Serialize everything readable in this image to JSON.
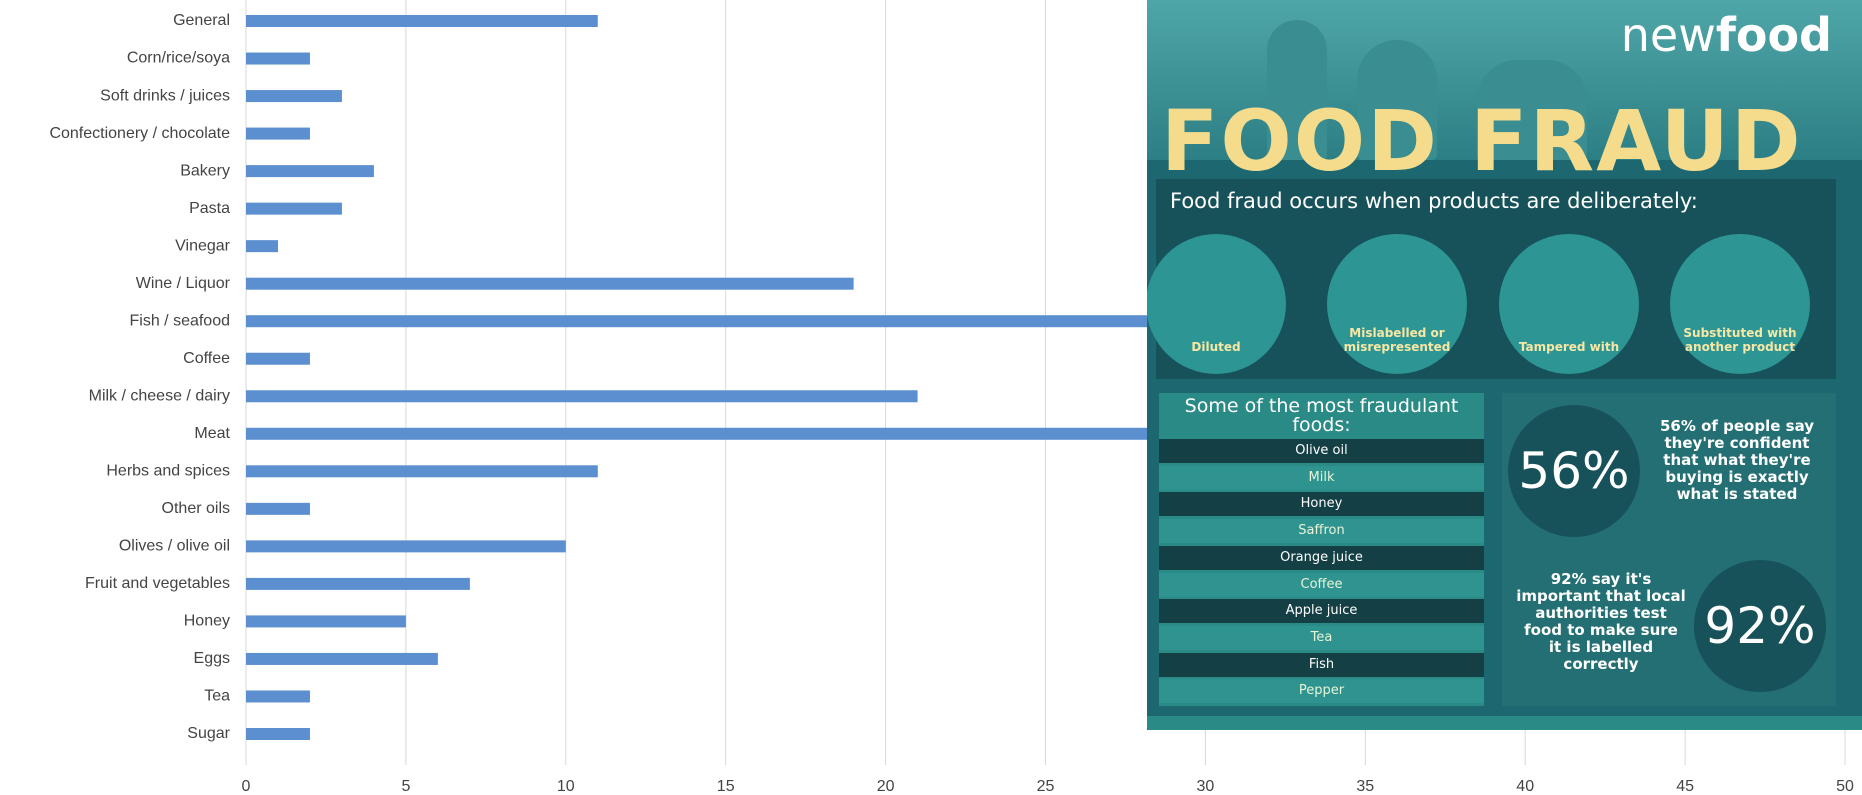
{
  "chart_data": {
    "type": "bar",
    "orientation": "horizontal",
    "categories": [
      "General",
      "Corn/rice/soya",
      "Soft drinks / juices",
      "Confectionery / chocolate",
      "Bakery",
      "Pasta",
      "Vinegar",
      "Wine / Liquor",
      "Fish / seafood",
      "Coffee",
      "Milk / cheese / dairy",
      "Meat",
      "Herbs and spices",
      "Other oils",
      "Olives / olive oil",
      "Fruit and vegetables",
      "Honey",
      "Eggs",
      "Tea",
      "Sugar"
    ],
    "values": [
      11,
      2,
      3,
      2,
      4,
      3,
      1,
      19,
      35,
      2,
      21,
      33,
      11,
      2,
      10,
      7,
      5,
      6,
      2,
      2
    ],
    "color": "#5b8fcf",
    "xlim": [
      0,
      50
    ],
    "xticks": [
      0,
      5,
      10,
      15,
      20,
      25,
      30,
      35,
      40,
      45,
      50
    ],
    "grid": true
  },
  "infographic": {
    "brand": {
      "light": "new",
      "bold": "food"
    },
    "title": "FOOD FRAUD",
    "intro": "Food fraud occurs when products are deliberately:",
    "methods": [
      "Diluted",
      "Mislabelled or misrepresented",
      "Tampered with",
      "Substituted with another product"
    ],
    "list_title": "Some of the most fraudulant foods:",
    "foods": [
      "Olive oil",
      "Milk",
      "Honey",
      "Saffron",
      "Orange juice",
      "Coffee",
      "Apple juice",
      "Tea",
      "Fish",
      "Pepper"
    ],
    "stats": [
      {
        "value": "56%",
        "text": "56% of people say they're confident that what they're buying is exactly what is stated"
      },
      {
        "value": "92%",
        "text": "92% say it's important that local authorities test food to make sure it is labelled correctly"
      }
    ]
  }
}
